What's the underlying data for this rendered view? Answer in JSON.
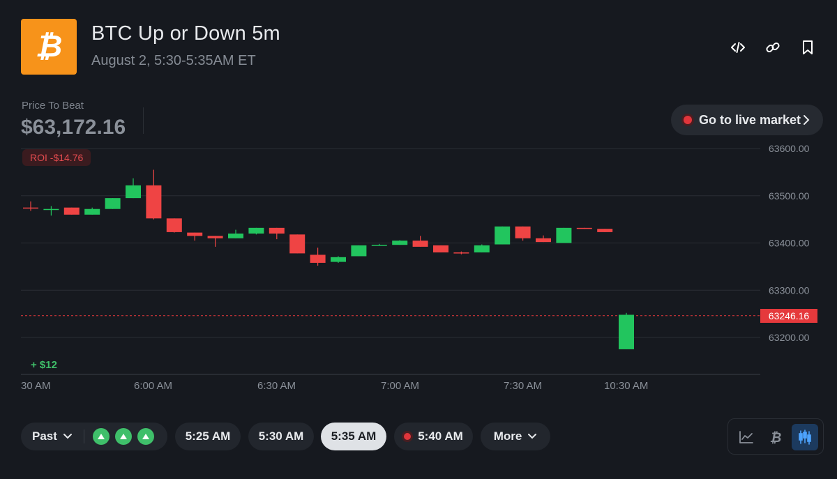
{
  "header": {
    "title": "BTC Up or Down 5m",
    "subtitle": "August 2, 5:30-5:35AM ET",
    "icons": [
      "code-icon",
      "link-icon",
      "bookmark-icon"
    ]
  },
  "price_to_beat": {
    "label": "Price To Beat",
    "value": "$63,172.16"
  },
  "live_button": {
    "label": "Go to live market"
  },
  "roi_badge": "ROI -$14.76",
  "gain_label": "+ $12",
  "current_price_tag": "63246.16",
  "chart_data": {
    "type": "candlestick",
    "y_ticks": [
      "63600.00",
      "63500.00",
      "63400.00",
      "63300.00",
      "63200.00"
    ],
    "x_ticks": [
      "30 AM",
      "6:00 AM",
      "6:30 AM",
      "7:00 AM",
      "7:30 AM",
      "10:30 AM"
    ],
    "ylim": [
      63100,
      63600
    ],
    "current_price": 63246.16,
    "colors": {
      "up": "#22c55e",
      "down": "#ef4444",
      "grid": "#2a2e35",
      "price_line": "#e5393c"
    },
    "candles": [
      {
        "o": 63475,
        "h": 63488,
        "l": 63468,
        "c": 63474
      },
      {
        "o": 63472,
        "h": 63478,
        "l": 63458,
        "c": 63472
      },
      {
        "o": 63475,
        "h": 63475,
        "l": 63460,
        "c": 63460
      },
      {
        "o": 63460,
        "h": 63475,
        "l": 63460,
        "c": 63472
      },
      {
        "o": 63472,
        "h": 63495,
        "l": 63472,
        "c": 63495
      },
      {
        "o": 63495,
        "h": 63537,
        "l": 63495,
        "c": 63522
      },
      {
        "o": 63522,
        "h": 63555,
        "l": 63450,
        "c": 63452
      },
      {
        "o": 63452,
        "h": 63452,
        "l": 63422,
        "c": 63423
      },
      {
        "o": 63422,
        "h": 63422,
        "l": 63405,
        "c": 63415
      },
      {
        "o": 63415,
        "h": 63415,
        "l": 63392,
        "c": 63410
      },
      {
        "o": 63410,
        "h": 63428,
        "l": 63410,
        "c": 63420
      },
      {
        "o": 63420,
        "h": 63432,
        "l": 63418,
        "c": 63432
      },
      {
        "o": 63432,
        "h": 63432,
        "l": 63408,
        "c": 63420
      },
      {
        "o": 63418,
        "h": 63418,
        "l": 63378,
        "c": 63378
      },
      {
        "o": 63375,
        "h": 63390,
        "l": 63352,
        "c": 63358
      },
      {
        "o": 63360,
        "h": 63372,
        "l": 63358,
        "c": 63370
      },
      {
        "o": 63372,
        "h": 63395,
        "l": 63372,
        "c": 63395
      },
      {
        "o": 63394,
        "h": 63398,
        "l": 63394,
        "c": 63396
      },
      {
        "o": 63396,
        "h": 63406,
        "l": 63396,
        "c": 63405
      },
      {
        "o": 63405,
        "h": 63415,
        "l": 63392,
        "c": 63392
      },
      {
        "o": 63395,
        "h": 63395,
        "l": 63380,
        "c": 63380
      },
      {
        "o": 63380,
        "h": 63382,
        "l": 63376,
        "c": 63378
      },
      {
        "o": 63380,
        "h": 63397,
        "l": 63380,
        "c": 63395
      },
      {
        "o": 63397,
        "h": 63435,
        "l": 63397,
        "c": 63435
      },
      {
        "o": 63435,
        "h": 63435,
        "l": 63405,
        "c": 63410
      },
      {
        "o": 63410,
        "h": 63416,
        "l": 63402,
        "c": 63402
      },
      {
        "o": 63400,
        "h": 63432,
        "l": 63400,
        "c": 63432
      },
      {
        "o": 63432,
        "h": 63432,
        "l": 63430,
        "c": 63430
      },
      {
        "o": 63430,
        "h": 63430,
        "l": 63423,
        "c": 63423
      },
      {
        "o": 63175,
        "h": 63252,
        "l": 63175,
        "c": 63248
      }
    ]
  },
  "timeline": {
    "past_label": "Past",
    "past_results": [
      "up",
      "up",
      "up"
    ],
    "times": [
      "5:25 AM",
      "5:30 AM",
      "5:35 AM",
      "5:40 AM"
    ],
    "active_time": "5:35 AM",
    "live_time": "5:40 AM",
    "more_label": "More"
  },
  "view_toggle": {
    "options": [
      "line-chart-icon",
      "bitcoin-icon",
      "candlestick-icon"
    ],
    "active": "candlestick-icon"
  }
}
